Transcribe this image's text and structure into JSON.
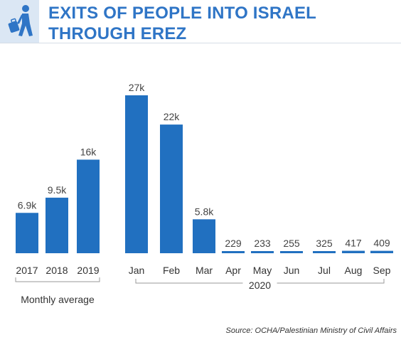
{
  "header": {
    "title_line1": "EXITS OF PEOPLE INTO ISRAEL",
    "title_line2": "THROUGH EREZ",
    "icon": "person-walking-with-bag-icon"
  },
  "colors": {
    "bar": "#2170c0",
    "title": "#2f75c6",
    "icon_bg": "#dbe7f4",
    "text": "#333333",
    "bracket": "#999999"
  },
  "chart_data": {
    "type": "bar",
    "categories": [
      "2017",
      "2018",
      "2019",
      "Jan",
      "Feb",
      "Mar",
      "Apr",
      "May",
      "Jun",
      "Jul",
      "Aug",
      "Sep"
    ],
    "values": [
      6900,
      9500,
      16000,
      27000,
      22000,
      5800,
      229,
      233,
      255,
      325,
      417,
      409
    ],
    "data_labels": [
      "6.9k",
      "9.5k",
      "16k",
      "27k",
      "22k",
      "5.8k",
      "229",
      "233",
      "255",
      "325",
      "417",
      "409"
    ],
    "groups": [
      {
        "label": "Monthly average",
        "categories": [
          "2017",
          "2018",
          "2019"
        ]
      },
      {
        "label": "2020",
        "categories": [
          "Jan",
          "Feb",
          "Mar",
          "Apr",
          "May",
          "Jun",
          "Jul",
          "Aug",
          "Sep"
        ]
      }
    ],
    "title": "EXITS OF PEOPLE INTO ISRAEL THROUGH EREZ",
    "xlabel": "",
    "ylabel": "",
    "ylim": [
      0,
      27000
    ],
    "grid": false,
    "legend": "none"
  },
  "source": "Source: OCHA/Palestinian Ministry of Civil Affairs"
}
